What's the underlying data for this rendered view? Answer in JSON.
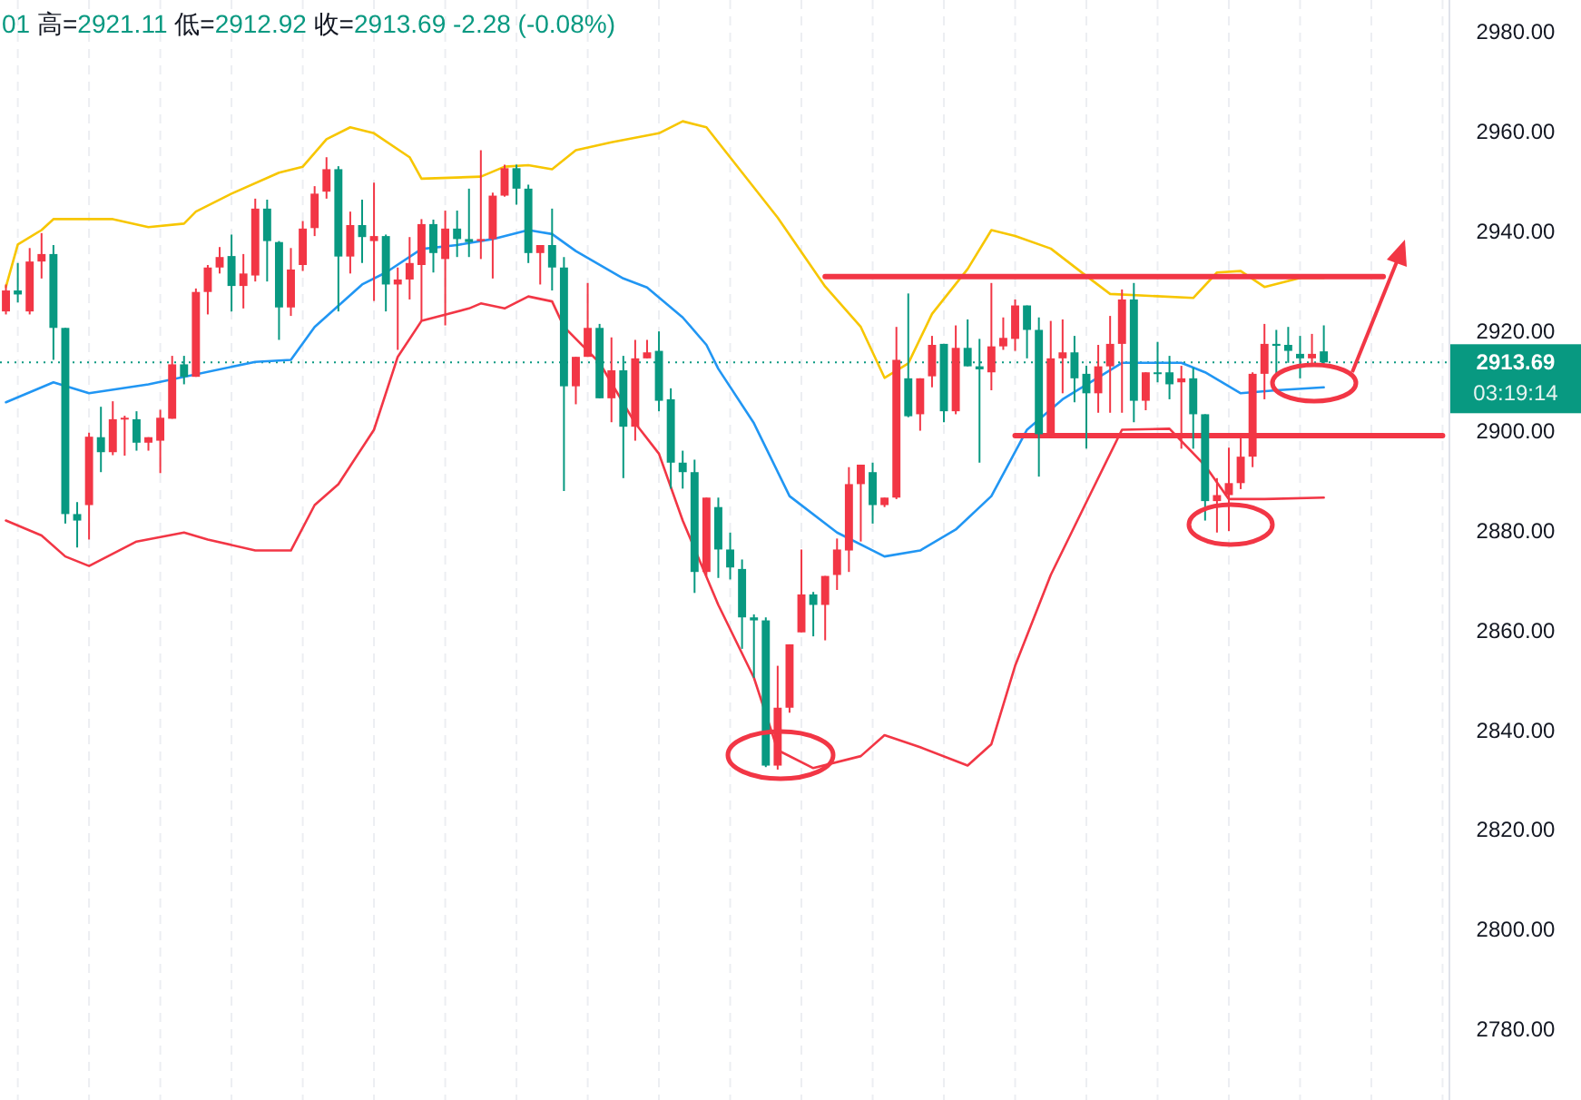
{
  "chart_data": {
    "type": "candlestick",
    "title": "01 高=2921.11 低=2912.92 收=2913.69 -2.28 (-0.08%)",
    "categories": [
      null,
      null,
      null,
      null,
      null,
      null,
      null,
      null,
      null,
      null,
      null,
      null,
      null,
      null,
      null,
      null,
      null,
      null,
      null,
      null,
      null,
      null,
      null,
      null,
      null,
      null,
      null,
      null,
      null,
      null,
      null,
      null,
      null,
      null,
      null,
      null,
      null,
      null,
      null,
      null,
      null,
      null,
      null,
      null,
      null,
      null,
      null,
      null,
      null,
      null,
      null,
      null,
      null,
      null,
      null,
      null,
      null,
      null,
      null,
      null,
      null,
      null,
      null,
      null,
      null,
      null,
      null,
      null,
      null,
      null,
      null,
      null,
      null,
      null,
      null,
      null,
      null,
      null,
      null,
      null,
      null,
      null,
      null,
      null,
      null,
      null,
      null,
      null,
      null,
      null,
      null,
      null,
      null,
      null,
      null,
      null,
      null,
      null,
      null,
      null,
      null,
      null,
      null,
      null,
      null,
      null,
      null,
      null,
      null,
      null,
      null,
      null,
      null,
      null,
      null,
      null,
      null,
      null,
      null,
      null,
      null,
      null
    ],
    "ohlc": [
      [
        2923.9,
        2929.3,
        2923.3,
        2928.1
      ],
      [
        2928.1,
        2933.6,
        2925.7,
        2927.3
      ],
      [
        2923.9,
        2936.6,
        2923.3,
        2933.9
      ],
      [
        2933.9,
        2939.6,
        2930.5,
        2935.4
      ],
      [
        2935.4,
        2937.2,
        2914.2,
        2920.6
      ],
      [
        2920.6,
        2920.6,
        2881.4,
        2883.3
      ],
      [
        2883.3,
        2885.7,
        2876.6,
        2882.0
      ],
      [
        2885.1,
        2899.6,
        2878.2,
        2898.8
      ],
      [
        2898.7,
        2904.8,
        2891.7,
        2895.7
      ],
      [
        2895.7,
        2905.9,
        2895.1,
        2902.3
      ],
      [
        2902.3,
        2903.0,
        2895.0,
        2902.6
      ],
      [
        2902.3,
        2903.9,
        2896.0,
        2897.6
      ],
      [
        2897.6,
        2898.7,
        2896.0,
        2898.7
      ],
      [
        2898.0,
        2904.2,
        2891.5,
        2902.6
      ],
      [
        2902.4,
        2915.0,
        2902.4,
        2913.3
      ],
      [
        2913.3,
        2915.0,
        2909.3,
        2910.8
      ],
      [
        2910.8,
        2928.5,
        2910.8,
        2927.8
      ],
      [
        2927.8,
        2933.2,
        2923.3,
        2932.7
      ],
      [
        2932.7,
        2936.8,
        2931.5,
        2934.8
      ],
      [
        2935.0,
        2939.3,
        2923.9,
        2929.0
      ],
      [
        2929.0,
        2935.4,
        2924.5,
        2931.5
      ],
      [
        2931.1,
        2946.5,
        2929.9,
        2944.5
      ],
      [
        2944.5,
        2946.3,
        2929.9,
        2938.0
      ],
      [
        2937.8,
        2938.0,
        2918.2,
        2924.7
      ],
      [
        2924.7,
        2936.6,
        2923.0,
        2932.3
      ],
      [
        2933.2,
        2942.0,
        2932.0,
        2940.5
      ],
      [
        2940.6,
        2949.0,
        2939.0,
        2947.5
      ],
      [
        2947.9,
        2954.8,
        2946.5,
        2952.4
      ],
      [
        2952.4,
        2953.0,
        2923.9,
        2934.9
      ],
      [
        2934.9,
        2943.9,
        2931.5,
        2941.2
      ],
      [
        2941.2,
        2946.3,
        2933.6,
        2938.8
      ],
      [
        2938.0,
        2949.7,
        2926.0,
        2939.0
      ],
      [
        2939.0,
        2939.3,
        2923.9,
        2929.3
      ],
      [
        2929.3,
        2932.7,
        2916.2,
        2930.3
      ],
      [
        2930.3,
        2938.8,
        2926.3,
        2933.6
      ],
      [
        2933.2,
        2942.4,
        2922.0,
        2941.4
      ],
      [
        2941.4,
        2942.3,
        2931.7,
        2935.6
      ],
      [
        2934.4,
        2944.1,
        2921.1,
        2940.5
      ],
      [
        2940.5,
        2944.1,
        2934.8,
        2938.4
      ],
      [
        2938.4,
        2948.5,
        2934.8,
        2937.8
      ],
      [
        2938.0,
        2956.2,
        2934.4,
        2938.4
      ],
      [
        2938.4,
        2947.7,
        2930.5,
        2947.1
      ],
      [
        2947.1,
        2953.3,
        2946.9,
        2952.6
      ],
      [
        2952.6,
        2953.3,
        2945.3,
        2948.5
      ],
      [
        2948.5,
        2949.3,
        2933.6,
        2935.6
      ],
      [
        2935.6,
        2937.2,
        2929.3,
        2937.2
      ],
      [
        2937.2,
        2944.5,
        2928.1,
        2932.7
      ],
      [
        2932.7,
        2934.8,
        2887.9,
        2908.9
      ],
      [
        2908.9,
        2914.8,
        2905.3,
        2914.8
      ],
      [
        2914.8,
        2929.6,
        2914.8,
        2920.6
      ],
      [
        2920.6,
        2921.4,
        2906.5,
        2906.5
      ],
      [
        2906.5,
        2918.7,
        2901.7,
        2912.1
      ],
      [
        2912.1,
        2915.0,
        2890.5,
        2900.8
      ],
      [
        2900.8,
        2918.2,
        2898.0,
        2914.5
      ],
      [
        2914.5,
        2918.2,
        2914.5,
        2915.7
      ],
      [
        2916.0,
        2919.9,
        2903.9,
        2906.0
      ],
      [
        2906.3,
        2908.5,
        2888.4,
        2893.6
      ],
      [
        2893.6,
        2896.0,
        2888.4,
        2891.7
      ],
      [
        2891.7,
        2894.2,
        2867.5,
        2871.7
      ],
      [
        2871.7,
        2886.6,
        2870.9,
        2886.6
      ],
      [
        2884.7,
        2886.6,
        2870.5,
        2876.2
      ],
      [
        2876.2,
        2879.6,
        2870.2,
        2872.6
      ],
      [
        2872.3,
        2874.2,
        2856.3,
        2862.6
      ],
      [
        2862.6,
        2863.2,
        2850.5,
        2862.0
      ],
      [
        2862.0,
        2862.6,
        2832.6,
        2832.9
      ],
      [
        2832.9,
        2852.9,
        2832.1,
        2844.5
      ],
      [
        2844.5,
        2857.2,
        2843.5,
        2857.2
      ],
      [
        2859.6,
        2876.2,
        2859.6,
        2867.2
      ],
      [
        2867.2,
        2867.7,
        2858.8,
        2865.1
      ],
      [
        2865.1,
        2870.9,
        2858.0,
        2870.9
      ],
      [
        2871.1,
        2878.4,
        2868.1,
        2876.2
      ],
      [
        2876.0,
        2892.7,
        2871.7,
        2889.3
      ],
      [
        2889.3,
        2893.2,
        2877.8,
        2893.2
      ],
      [
        2891.7,
        2893.6,
        2881.4,
        2885.1
      ],
      [
        2885.1,
        2886.6,
        2884.7,
        2886.6
      ],
      [
        2886.6,
        2920.8,
        2886.3,
        2914.2
      ],
      [
        2910.5,
        2927.5,
        2902.7,
        2902.9
      ],
      [
        2903.3,
        2910.5,
        2900.0,
        2910.5
      ],
      [
        2910.9,
        2919.0,
        2908.7,
        2917.2
      ],
      [
        2917.4,
        2917.4,
        2901.7,
        2903.9
      ],
      [
        2903.9,
        2921.1,
        2903.3,
        2916.6
      ],
      [
        2916.6,
        2922.3,
        2912.9,
        2912.9
      ],
      [
        2912.9,
        2918.4,
        2893.6,
        2912.3
      ],
      [
        2911.7,
        2929.6,
        2908.1,
        2916.9
      ],
      [
        2916.9,
        2922.7,
        2916.2,
        2918.6
      ],
      [
        2918.4,
        2926.3,
        2916.0,
        2925.1
      ],
      [
        2925.1,
        2925.1,
        2914.5,
        2920.2
      ],
      [
        2920.2,
        2922.7,
        2890.8,
        2899.3
      ],
      [
        2899.3,
        2922.0,
        2898.8,
        2914.5
      ],
      [
        2914.5,
        2922.3,
        2907.5,
        2915.7
      ],
      [
        2915.7,
        2919.0,
        2905.7,
        2910.5
      ],
      [
        2911.4,
        2913.0,
        2896.4,
        2907.5
      ],
      [
        2907.5,
        2917.2,
        2903.6,
        2912.9
      ],
      [
        2912.9,
        2923.0,
        2903.6,
        2917.4
      ],
      [
        2917.4,
        2928.3,
        2903.6,
        2926.3
      ],
      [
        2926.3,
        2929.6,
        2901.7,
        2906.0
      ],
      [
        2906.0,
        2911.7,
        2904.1,
        2911.7
      ],
      [
        2911.7,
        2917.8,
        2909.7,
        2911.4
      ],
      [
        2911.7,
        2915.0,
        2906.3,
        2909.3
      ],
      [
        2909.7,
        2913.0,
        2896.4,
        2910.5
      ],
      [
        2910.5,
        2912.6,
        2896.4,
        2903.3
      ],
      [
        2903.3,
        2903.3,
        2882.0,
        2885.9
      ],
      [
        2885.9,
        2890.5,
        2879.6,
        2887.1
      ],
      [
        2887.1,
        2896.6,
        2879.9,
        2889.5
      ],
      [
        2889.5,
        2899.3,
        2888.3,
        2894.8
      ],
      [
        2894.8,
        2911.7,
        2892.7,
        2911.4
      ],
      [
        2911.4,
        2921.4,
        2906.3,
        2917.4
      ],
      [
        2917.4,
        2920.2,
        2911.4,
        2917.0
      ],
      [
        2917.2,
        2920.8,
        2913.6,
        2916.0
      ],
      [
        2915.4,
        2919.0,
        2910.5,
        2914.5
      ],
      [
        2914.5,
        2919.4,
        2912.9,
        2915.4
      ],
      [
        2915.9,
        2921.11,
        2912.92,
        2913.69
      ],
      null,
      null,
      null,
      null,
      null,
      null,
      null,
      null,
      null,
      null
    ],
    "colors": [
      "#f23645",
      "#089981",
      "#f23645",
      "#f23645",
      "#089981",
      "#089981",
      "#089981",
      "#f23645",
      "#089981",
      "#f23645",
      "#f23645",
      "#089981",
      "#f23645",
      "#f23645",
      "#f23645",
      "#089981",
      "#f23645",
      "#f23645",
      "#f23645",
      "#089981",
      "#f23645",
      "#f23645",
      "#089981",
      "#089981",
      "#f23645",
      "#f23645",
      "#f23645",
      "#f23645",
      "#089981",
      "#f23645",
      "#089981",
      "#f23645",
      "#089981",
      "#f23645",
      "#f23645",
      "#f23645",
      "#089981",
      "#f23645",
      "#089981",
      "#089981",
      "#f23645",
      "#f23645",
      "#f23645",
      "#089981",
      "#089981",
      "#f23645",
      "#089981",
      "#089981",
      "#f23645",
      "#f23645",
      "#089981",
      "#f23645",
      "#089981",
      "#f23645",
      "#f23645",
      "#089981",
      "#089981",
      "#089981",
      "#089981",
      "#f23645",
      "#089981",
      "#089981",
      "#089981",
      "#089981",
      "#089981",
      "#f23645",
      "#f23645",
      "#f23645",
      "#089981",
      "#f23645",
      "#f23645",
      "#f23645",
      "#f23645",
      "#089981",
      "#f23645",
      "#f23645",
      "#089981",
      "#f23645",
      "#f23645",
      "#089981",
      "#f23645",
      "#089981",
      "#089981",
      "#f23645",
      "#f23645",
      "#f23645",
      "#089981",
      "#089981",
      "#f23645",
      "#f23645",
      "#089981",
      "#089981",
      "#f23645",
      "#f23645",
      "#f23645",
      "#089981",
      "#f23645",
      "#089981",
      "#089981",
      "#f23645",
      "#089981",
      "#089981",
      "#f23645",
      "#f23645",
      "#f23645",
      "#f23645",
      "#f23645",
      "#089981",
      "#089981",
      "#089981",
      "#f23645",
      "#089981",
      null,
      null,
      null,
      null,
      null,
      null,
      null,
      null,
      null,
      null
    ],
    "series": [
      {
        "type": "line",
        "color": "#f7c600",
        "values": [
          2928.8,
          2937.3,
          null,
          2940.2,
          2942.4,
          null,
          null,
          null,
          null,
          2942.4,
          null,
          null,
          2940.8,
          null,
          null,
          2941.5,
          2943.9,
          null,
          null,
          2947.5,
          null,
          null,
          null,
          2951.7,
          null,
          2952.9,
          null,
          2958.4,
          null,
          2960.8,
          null,
          2959.6,
          null,
          null,
          2954.8,
          2950.5,
          null,
          null,
          null,
          null,
          2950.9,
          null,
          2952.9,
          null,
          2953.2,
          null,
          2952.4,
          null,
          2956.2,
          null,
          null,
          2957.8,
          null,
          null,
          null,
          2959.6,
          null,
          2962.0,
          null,
          2960.8,
          null,
          null,
          null,
          null,
          null,
          2942.7,
          null,
          null,
          null,
          2928.9,
          null,
          null,
          2920.8,
          null,
          2910.6,
          null,
          2913.5,
          null,
          2923.4,
          null,
          null,
          2932.4,
          null,
          2940.2,
          null,
          2939.0,
          null,
          null,
          2936.5,
          null,
          null,
          2931.0,
          null,
          2927.4,
          null,
          null,
          null,
          null,
          null,
          null,
          2926.6,
          null,
          2931.7,
          null,
          2932.0,
          null,
          2928.8,
          null,
          null,
          2930.6,
          null,
          2930.6,
          null,
          null,
          null,
          null,
          null,
          null,
          null,
          null,
          null,
          null
        ]
      },
      {
        "type": "line",
        "color": "#2196f3",
        "values": [
          2905.7,
          null,
          null,
          null,
          2909.7,
          null,
          null,
          2907.5,
          null,
          null,
          null,
          null,
          2909.3,
          null,
          null,
          null,
          null,
          null,
          null,
          null,
          null,
          2913.8,
          null,
          null,
          2914.2,
          null,
          2920.8,
          null,
          null,
          null,
          2929.3,
          null,
          2931.7,
          null,
          null,
          2936.4,
          null,
          null,
          2937.2,
          null,
          null,
          2938.4,
          null,
          null,
          2940.2,
          null,
          2939.4,
          null,
          2936.0,
          null,
          null,
          null,
          2930.5,
          null,
          2928.7,
          null,
          null,
          2922.7,
          null,
          2917.2,
          2912.4,
          null,
          null,
          2901.5,
          null,
          null,
          2886.9,
          null,
          null,
          null,
          2879.6,
          null,
          null,
          null,
          2874.8,
          null,
          null,
          2876.0,
          null,
          null,
          2880.2,
          null,
          null,
          2886.9,
          null,
          null,
          2900.2,
          null,
          null,
          2906.3,
          null,
          null,
          null,
          null,
          2913.6,
          null,
          null,
          null,
          null,
          2913.6,
          null,
          2911.7,
          null,
          null,
          2907.5,
          null,
          null,
          2908.1,
          null,
          null,
          null,
          2908.7,
          null,
          null,
          null,
          null,
          null,
          null,
          null,
          null,
          null,
          null
        ]
      },
      {
        "type": "line",
        "color": "#f23645",
        "values": [
          2882.0,
          null,
          null,
          2879.0,
          null,
          2874.8,
          null,
          2872.9,
          null,
          null,
          null,
          2877.8,
          null,
          null,
          null,
          2879.6,
          null,
          2878.2,
          null,
          null,
          null,
          2876.0,
          null,
          null,
          2876.0,
          null,
          2885.1,
          null,
          2889.3,
          null,
          null,
          2900.2,
          null,
          2914.8,
          null,
          2922.0,
          null,
          null,
          null,
          2924.5,
          2925.5,
          null,
          2924.5,
          null,
          2926.9,
          null,
          2925.9,
          2920.8,
          null,
          null,
          2913.6,
          null,
          null,
          2901.5,
          null,
          2895.4,
          null,
          2882.0,
          null,
          null,
          2865.1,
          null,
          null,
          2850.5,
          null,
          2836.0,
          null,
          null,
          2832.4,
          null,
          null,
          null,
          2834.8,
          null,
          2839.0,
          null,
          null,
          2836.6,
          null,
          null,
          null,
          2832.9,
          null,
          2837.2,
          null,
          2852.9,
          null,
          null,
          2871.1,
          null,
          null,
          2885.7,
          null,
          null,
          2900.2,
          null,
          null,
          null,
          2900.4,
          null,
          null,
          2893.0,
          null,
          2886.3,
          null,
          null,
          2886.3,
          null,
          null,
          null,
          null,
          2886.6,
          null,
          null,
          null,
          null,
          null,
          null,
          null,
          null,
          null,
          null
        ]
      },
      {
        "type": "line",
        "color": "#f23645",
        "values": [
          null,
          null,
          null,
          null,
          null,
          null,
          null,
          null,
          null,
          null,
          null,
          null,
          null,
          null,
          null,
          null,
          null,
          null,
          null,
          null,
          null,
          null,
          null,
          null,
          null,
          null,
          null,
          null,
          null,
          null,
          null,
          null,
          null,
          null,
          null,
          null,
          null,
          null,
          null,
          null,
          null,
          null,
          null,
          null,
          null,
          null,
          null,
          null,
          null,
          null,
          null,
          null,
          null,
          null,
          null,
          null,
          null,
          null,
          null,
          null,
          null,
          null,
          null,
          null,
          null,
          null,
          null,
          null,
          null,
          2930.9,
          null,
          null,
          null,
          null,
          null,
          null,
          null,
          null,
          null,
          null,
          null,
          null,
          null,
          null,
          null,
          null,
          null,
          null,
          null,
          null,
          null,
          null,
          null,
          null,
          null,
          null,
          null,
          null,
          null,
          null,
          null,
          null,
          null,
          null,
          null,
          null,
          null,
          null,
          null,
          null,
          null,
          null,
          null,
          null,
          null,
          null,
          2930.9,
          null,
          null,
          null,
          null,
          null
        ]
      },
      {
        "type": "line",
        "color": "#f23645",
        "values": [
          null,
          null,
          null,
          null,
          null,
          null,
          null,
          null,
          null,
          null,
          null,
          null,
          null,
          null,
          null,
          null,
          null,
          null,
          null,
          null,
          null,
          null,
          null,
          null,
          null,
          null,
          null,
          null,
          null,
          null,
          null,
          null,
          null,
          null,
          null,
          null,
          null,
          null,
          null,
          null,
          null,
          null,
          null,
          null,
          null,
          null,
          null,
          null,
          null,
          null,
          null,
          null,
          null,
          null,
          null,
          null,
          null,
          null,
          null,
          null,
          null,
          null,
          null,
          null,
          null,
          null,
          null,
          null,
          null,
          null,
          null,
          null,
          null,
          null,
          null,
          null,
          null,
          null,
          null,
          null,
          null,
          null,
          null,
          null,
          null,
          2899.0,
          null,
          null,
          null,
          null,
          null,
          null,
          null,
          null,
          null,
          null,
          null,
          null,
          null,
          null,
          null,
          null,
          null,
          null,
          null,
          null,
          null,
          null,
          null,
          null,
          null,
          null,
          null,
          null,
          null,
          null,
          null,
          null,
          null,
          null,
          null,
          2899.0
        ]
      }
    ],
    "ylim": [
      2765.9,
      2986.3
    ],
    "yticks": [
      {
        "value": 2780,
        "label": "2780.00"
      },
      {
        "value": 2800,
        "label": "2800.00"
      },
      {
        "value": 2820,
        "label": "2820.00"
      },
      {
        "value": 2840,
        "label": "2840.00"
      },
      {
        "value": 2860,
        "label": "2860.00"
      },
      {
        "value": 2880,
        "label": "2880.00"
      },
      {
        "value": 2900,
        "label": "2900.00"
      },
      {
        "value": 2920,
        "label": "2920.00"
      },
      {
        "value": 2940,
        "label": "2940.00"
      },
      {
        "value": 2960,
        "label": "2960.00"
      },
      {
        "value": 2980,
        "label": "2980.00"
      }
    ],
    "ref_lines": [
      {
        "axis": "y",
        "value": 2913.69,
        "label": "2913.69",
        "color": "#089981",
        "line_style": "dotted"
      }
    ],
    "annotations": [
      "03:19:14"
    ],
    "grid": "x"
  }
}
